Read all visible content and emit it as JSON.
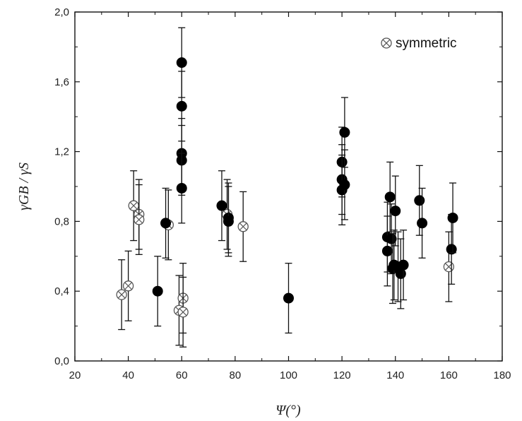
{
  "chart_data": {
    "type": "scatter",
    "xlabel": "Ψ(°)",
    "ylabel": "γGB / γS",
    "xlim": [
      20,
      180
    ],
    "ylim": [
      0.0,
      2.0
    ],
    "x_ticks": [
      20,
      40,
      60,
      80,
      100,
      120,
      140,
      160,
      180
    ],
    "x_tick_labels": [
      "20",
      "40",
      "60",
      "80",
      "100",
      "120",
      "140",
      "160",
      "180"
    ],
    "y_ticks": [
      0.0,
      0.4,
      0.8,
      1.2,
      1.6,
      2.0
    ],
    "y_tick_labels": [
      "0,0",
      "0,4",
      "0,8",
      "1,2",
      "1,6",
      "2,0"
    ],
    "grid": false,
    "legend_position": "top-right",
    "series": [
      {
        "marker": "filled-circle",
        "color": "#000000",
        "points": [
          {
            "x": 51,
            "y": 0.4,
            "err": 0.2
          },
          {
            "x": 54,
            "y": 0.79,
            "err": 0.2
          },
          {
            "x": 60,
            "y": 1.71,
            "err": 0.2
          },
          {
            "x": 60,
            "y": 1.46,
            "err": 0.2
          },
          {
            "x": 60,
            "y": 1.19,
            "err": 0.2
          },
          {
            "x": 60,
            "y": 1.15,
            "err": 0.2
          },
          {
            "x": 60,
            "y": 0.99,
            "err": 0.2
          },
          {
            "x": 75,
            "y": 0.89,
            "err": 0.2
          },
          {
            "x": 77.5,
            "y": 0.82,
            "err": 0.2
          },
          {
            "x": 77.5,
            "y": 0.8,
            "err": 0.2
          },
          {
            "x": 100,
            "y": 0.36,
            "err": 0.2
          },
          {
            "x": 120,
            "y": 1.14,
            "err": 0.2
          },
          {
            "x": 120,
            "y": 1.04,
            "err": 0.2
          },
          {
            "x": 120,
            "y": 0.98,
            "err": 0.2
          },
          {
            "x": 121,
            "y": 1.31,
            "err": 0.2
          },
          {
            "x": 121,
            "y": 1.01,
            "err": 0.2
          },
          {
            "x": 137,
            "y": 0.71,
            "err": 0.2
          },
          {
            "x": 137,
            "y": 0.63,
            "err": 0.2
          },
          {
            "x": 138,
            "y": 0.94,
            "err": 0.2
          },
          {
            "x": 138.5,
            "y": 0.7,
            "err": 0.2
          },
          {
            "x": 139,
            "y": 0.53,
            "err": 0.2
          },
          {
            "x": 139.5,
            "y": 0.55,
            "err": 0.2
          },
          {
            "x": 140,
            "y": 0.86,
            "err": 0.2
          },
          {
            "x": 141,
            "y": 0.54,
            "err": 0.2
          },
          {
            "x": 142,
            "y": 0.5,
            "err": 0.2
          },
          {
            "x": 143,
            "y": 0.55,
            "err": 0.2
          },
          {
            "x": 149,
            "y": 0.92,
            "err": 0.2
          },
          {
            "x": 150,
            "y": 0.79,
            "err": 0.2
          },
          {
            "x": 161,
            "y": 0.64,
            "err": 0.2
          },
          {
            "x": 161.5,
            "y": 0.82,
            "err": 0.2
          }
        ]
      },
      {
        "name": "symmetric",
        "marker": "crossed-circle",
        "color": "#000000",
        "points": [
          {
            "x": 37.5,
            "y": 0.38,
            "err": 0.2
          },
          {
            "x": 40,
            "y": 0.43,
            "err": 0.2
          },
          {
            "x": 42,
            "y": 0.89,
            "err": 0.2
          },
          {
            "x": 44,
            "y": 0.84,
            "err": 0.2
          },
          {
            "x": 44,
            "y": 0.81,
            "err": 0.2
          },
          {
            "x": 55,
            "y": 0.78,
            "err": 0.2
          },
          {
            "x": 59,
            "y": 0.29,
            "err": 0.2
          },
          {
            "x": 60.5,
            "y": 0.36,
            "err": 0.2
          },
          {
            "x": 60.5,
            "y": 0.28,
            "err": 0.2
          },
          {
            "x": 77,
            "y": 0.84,
            "err": 0.2
          },
          {
            "x": 83,
            "y": 0.77,
            "err": 0.2
          },
          {
            "x": 160,
            "y": 0.54,
            "err": 0.2
          }
        ]
      }
    ]
  }
}
